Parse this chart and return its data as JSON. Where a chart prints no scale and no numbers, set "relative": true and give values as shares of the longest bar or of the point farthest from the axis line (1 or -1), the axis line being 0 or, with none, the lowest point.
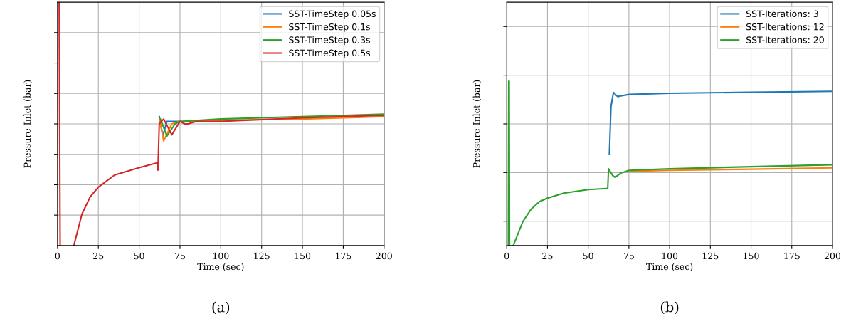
{
  "chart_data": [
    {
      "type": "line",
      "relative": true,
      "xlabel": "Time (sec)",
      "ylabel": "Pressure Inlet (bar)",
      "annotations": [
        "(a)"
      ],
      "xlim": [
        0,
        200
      ],
      "xticks": [
        0,
        25,
        50,
        75,
        100,
        125,
        150,
        175,
        200
      ],
      "tick_labels": "x",
      "grid": true,
      "legend": "top right",
      "series": [
        {
          "name": "SST-TimeStep 0.05s",
          "color": "#1f77b4",
          "x": [
            62.3,
            64.5,
            67,
            75
          ],
          "values": [
            0.53,
            0.45,
            0.51,
            0.51
          ]
        },
        {
          "name": "SST-TimeStep 0.1s",
          "color": "#ff7f0e",
          "x": [
            62.5,
            65,
            70,
            75,
            100,
            150,
            200
          ],
          "values": [
            0.52,
            0.43,
            0.5,
            0.51,
            0.515,
            0.52,
            0.53
          ]
        },
        {
          "name": "SST-TimeStep 0.3s",
          "color": "#2ca02c",
          "x": [
            63,
            67,
            72,
            75,
            100,
            150,
            200
          ],
          "values": [
            0.52,
            0.45,
            0.5,
            0.51,
            0.52,
            0.53,
            0.54
          ]
        },
        {
          "name": "SST-TimeStep 0.5s",
          "color": "#d62728",
          "x": [
            1,
            1.6,
            5,
            10,
            15,
            20,
            25,
            35,
            50,
            61,
            61.5,
            62.3,
            65,
            70,
            75,
            78,
            80,
            85,
            100,
            150,
            200
          ],
          "values": [
            1,
            0,
            null,
            0,
            0.13,
            0.2,
            0.24,
            0.29,
            0.32,
            0.34,
            0.31,
            0.5,
            0.52,
            0.455,
            0.51,
            0.5,
            0.5,
            0.51,
            0.51,
            0.525,
            0.535
          ]
        }
      ]
    },
    {
      "type": "line",
      "relative": true,
      "xlabel": "Time (sec)",
      "ylabel": "Pressure Inlet (bar)",
      "annotations": [
        "(b)"
      ],
      "xlim": [
        0,
        200
      ],
      "xticks": [
        0,
        25,
        50,
        75,
        100,
        125,
        150,
        175,
        200
      ],
      "tick_labels": "x",
      "grid": true,
      "legend": "top right",
      "series": [
        {
          "name": "SST-Iterations: 3",
          "color": "#1f77b4",
          "x": [
            63,
            64,
            65.5,
            68,
            70,
            75,
            100,
            150,
            200
          ],
          "values": [
            0.557,
            0.846,
            0.932,
            0.907,
            0.911,
            0.92,
            0.927,
            0.933,
            0.939
          ]
        },
        {
          "name": "SST-Iterations: 12",
          "color": "#ff7f0e",
          "x": [
            75,
            100,
            150,
            200
          ],
          "values": [
            0.452,
            0.458,
            0.465,
            0.473
          ]
        },
        {
          "name": "SST-Iterations: 20",
          "color": "#2ca02c",
          "x": [
            1,
            1.2,
            1.5,
            1.7,
            3,
            4,
            10,
            15,
            20,
            25,
            35,
            50,
            61,
            62,
            62.5,
            65,
            66.5,
            70,
            75,
            100,
            150,
            200
          ],
          "values": [
            0,
            1,
            1,
            0,
            null,
            0,
            0.148,
            0.222,
            0.267,
            0.289,
            0.319,
            0.341,
            0.347,
            0.347,
            0.467,
            0.427,
            0.415,
            0.441,
            0.458,
            0.467,
            0.48,
            0.492
          ]
        }
      ]
    }
  ]
}
